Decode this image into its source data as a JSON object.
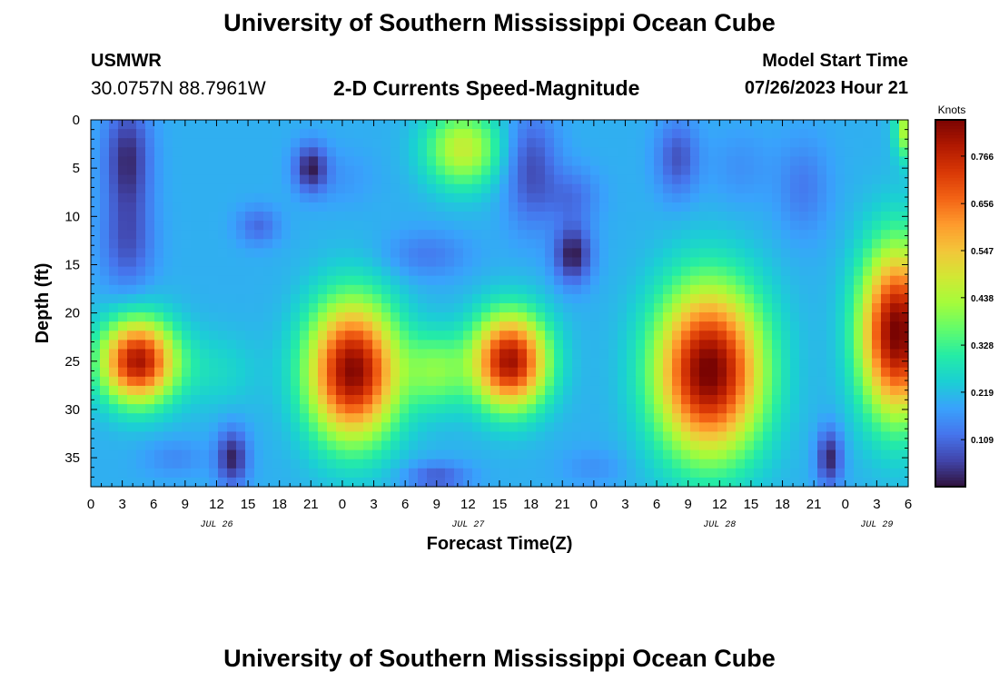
{
  "header": {
    "title": "University of Southern Mississippi Ocean Cube",
    "station": "USMWR",
    "coordinates": "30.0757N  88.7961W",
    "subtitle": "2-D Currents Speed-Magnitude",
    "model_start_label": "Model Start Time",
    "model_start_value": "07/26/2023 Hour 21"
  },
  "footer": {
    "title": "University of Southern Mississippi Ocean Cube"
  },
  "chart_data": {
    "type": "heatmap",
    "title": "2-D Currents Speed-Magnitude",
    "xlabel": "Forecast Time(Z)",
    "ylabel": "Depth (ft)",
    "x_hours_range": [
      0,
      78
    ],
    "x_ticks": [
      {
        "hour": 0,
        "label": "0"
      },
      {
        "hour": 3,
        "label": "3"
      },
      {
        "hour": 6,
        "label": "6"
      },
      {
        "hour": 9,
        "label": "9"
      },
      {
        "hour": 12,
        "label": "12"
      },
      {
        "hour": 15,
        "label": "15"
      },
      {
        "hour": 18,
        "label": "18"
      },
      {
        "hour": 21,
        "label": "21"
      },
      {
        "hour": 24,
        "label": "0"
      },
      {
        "hour": 27,
        "label": "3"
      },
      {
        "hour": 30,
        "label": "6"
      },
      {
        "hour": 33,
        "label": "9"
      },
      {
        "hour": 36,
        "label": "12"
      },
      {
        "hour": 39,
        "label": "15"
      },
      {
        "hour": 42,
        "label": "18"
      },
      {
        "hour": 45,
        "label": "21"
      },
      {
        "hour": 48,
        "label": "0"
      },
      {
        "hour": 51,
        "label": "3"
      },
      {
        "hour": 54,
        "label": "6"
      },
      {
        "hour": 57,
        "label": "9"
      },
      {
        "hour": 60,
        "label": "12"
      },
      {
        "hour": 63,
        "label": "15"
      },
      {
        "hour": 66,
        "label": "18"
      },
      {
        "hour": 69,
        "label": "21"
      },
      {
        "hour": 72,
        "label": "0"
      },
      {
        "hour": 75,
        "label": "3"
      },
      {
        "hour": 78,
        "label": "6"
      }
    ],
    "day_labels": [
      {
        "hour": 12,
        "label": "JUL 26"
      },
      {
        "hour": 36,
        "label": "JUL 27"
      },
      {
        "hour": 60,
        "label": "JUL 28"
      },
      {
        "hour": 75,
        "label": "JUL 29"
      }
    ],
    "y_range_ft": [
      0,
      38
    ],
    "y_ticks": [
      0,
      5,
      10,
      15,
      20,
      25,
      30,
      35
    ],
    "colorbar": {
      "unit": "Knots",
      "range": [
        0.0,
        0.85
      ],
      "ticks": [
        "0.109",
        "0.219",
        "0.328",
        "0.438",
        "0.547",
        "0.656",
        "0.766"
      ],
      "tick_values": [
        0.109,
        0.219,
        0.328,
        0.438,
        0.547,
        0.656,
        0.766
      ],
      "colors": [
        "#30123b",
        "#4145ab",
        "#4675ed",
        "#39a2fc",
        "#1bcfd4",
        "#24eca6",
        "#61fc6c",
        "#a4fc3b",
        "#d1e834",
        "#f3c63a",
        "#fe9b2d",
        "#f36315",
        "#d93806",
        "#b11901",
        "#7a0402"
      ]
    },
    "features": [
      {
        "hour": 3.5,
        "depth": 4,
        "speed": 0.03,
        "sh": 2.2,
        "sd": 6
      },
      {
        "hour": 3.5,
        "depth": 13,
        "speed": 0.09,
        "sh": 2.5,
        "sd": 5
      },
      {
        "hour": 21,
        "depth": 5,
        "speed": 0.02,
        "sh": 1.6,
        "sd": 2.5
      },
      {
        "hour": 24,
        "depth": 6,
        "speed": 0.17,
        "sh": 3,
        "sd": 3
      },
      {
        "hour": 16,
        "depth": 11,
        "speed": 0.11,
        "sh": 2,
        "sd": 2
      },
      {
        "hour": 35.5,
        "depth": 3,
        "speed": 0.47,
        "sh": 3.5,
        "sd": 4
      },
      {
        "hour": 32,
        "depth": 14,
        "speed": 0.13,
        "sh": 4,
        "sd": 2.5
      },
      {
        "hour": 42,
        "depth": 5,
        "speed": 0.07,
        "sh": 2.5,
        "sd": 6
      },
      {
        "hour": 46,
        "depth": 14,
        "speed": 0.01,
        "sh": 1.8,
        "sd": 3
      },
      {
        "hour": 46,
        "depth": 8,
        "speed": 0.12,
        "sh": 2.5,
        "sd": 3
      },
      {
        "hour": 56,
        "depth": 4,
        "speed": 0.08,
        "sh": 2,
        "sd": 4
      },
      {
        "hour": 62,
        "depth": 5,
        "speed": 0.16,
        "sh": 3,
        "sd": 4
      },
      {
        "hour": 68,
        "depth": 7,
        "speed": 0.13,
        "sh": 2.5,
        "sd": 5
      },
      {
        "hour": 78,
        "depth": 1,
        "speed": 0.46,
        "sh": 1.2,
        "sd": 3
      },
      {
        "hour": 4.5,
        "depth": 25,
        "speed": 0.8,
        "sh": 3.5,
        "sd": 4.2
      },
      {
        "hour": 25,
        "depth": 26,
        "speed": 0.84,
        "sh": 4.2,
        "sd": 7
      },
      {
        "hour": 40,
        "depth": 25,
        "speed": 0.81,
        "sh": 3.5,
        "sd": 4.8
      },
      {
        "hour": 59,
        "depth": 26,
        "speed": 0.86,
        "sh": 5,
        "sd": 8.5
      },
      {
        "hour": 77,
        "depth": 22,
        "speed": 0.86,
        "sh": 3.5,
        "sd": 8.5
      },
      {
        "hour": 12,
        "depth": 26,
        "speed": 0.26,
        "sh": 4,
        "sd": 4
      },
      {
        "hour": 33,
        "depth": 26,
        "speed": 0.38,
        "sh": 3,
        "sd": 4
      },
      {
        "hour": 13.5,
        "depth": 35,
        "speed": 0.02,
        "sh": 1.5,
        "sd": 3
      },
      {
        "hour": 70.5,
        "depth": 35,
        "speed": 0.02,
        "sh": 1.2,
        "sd": 3
      },
      {
        "hour": 8,
        "depth": 35,
        "speed": 0.15,
        "sh": 3,
        "sd": 2
      },
      {
        "hour": 33,
        "depth": 37,
        "speed": 0.09,
        "sh": 3,
        "sd": 1.5
      },
      {
        "hour": 48,
        "depth": 36,
        "speed": 0.16,
        "sh": 3,
        "sd": 2
      }
    ],
    "background_speed": 0.2
  }
}
